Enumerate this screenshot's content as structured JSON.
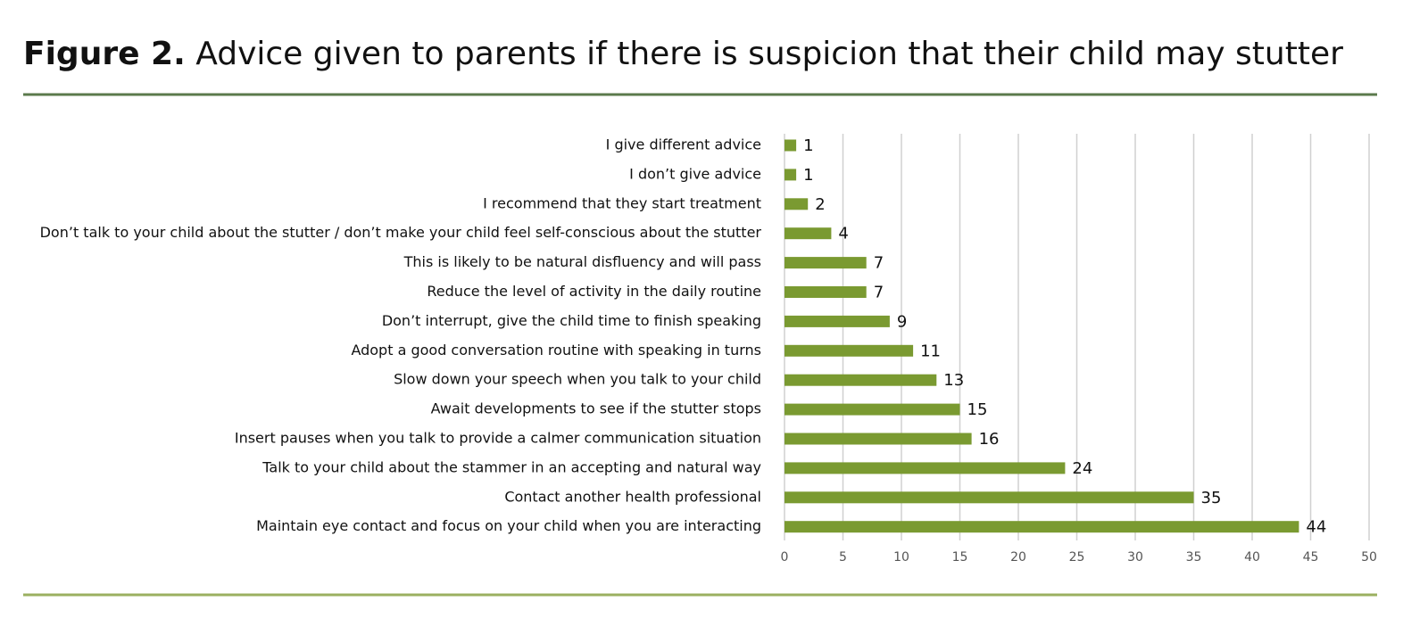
{
  "chart_data": {
    "type": "barh",
    "figure_label": "Figure 2.",
    "title": "Advice given to parents if there is suspicion that their child may stutter",
    "categories": [
      "I give different advice",
      "I don’t give advice",
      "I recommend that they start treatment",
      "Don’t talk to your child about the stutter / don’t make your child feel self-conscious about the stutter",
      "This is likely to be natural disfluency and will pass",
      "Reduce the level of activity in the daily routine",
      "Don’t interrupt, give the child time to finish speaking",
      "Adopt a good conversation routine with speaking in turns",
      "Slow down your speech when you talk to your child",
      "Await developments to see if the stutter stops",
      "Insert pauses when you talk to provide a calmer communication situation",
      "Talk to your child about the stammer in an accepting and natural way",
      "Contact another health professional",
      "Maintain eye contact and focus on your child when you are interacting"
    ],
    "values": [
      1,
      1,
      2,
      4,
      7,
      7,
      9,
      11,
      13,
      15,
      16,
      24,
      35,
      44
    ],
    "color": "#7a9a31",
    "xlim": [
      0,
      50
    ],
    "xticks": [
      0,
      5,
      10,
      15,
      20,
      25,
      30,
      35,
      40,
      45,
      50
    ],
    "grid": true
  }
}
